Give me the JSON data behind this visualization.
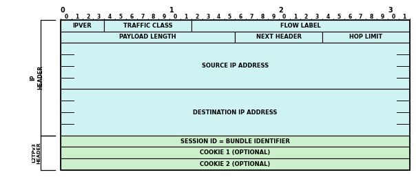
{
  "bg_color": "#ffffff",
  "cell_color_cyan": "#cff3f3",
  "cell_color_green": "#ccf0cc",
  "border_color": "#000000",
  "text_color": "#000000",
  "total_bits": 32,
  "rows": [
    {
      "cells": [
        {
          "label": "IPVER",
          "start": 0,
          "end": 4,
          "color": "cyan"
        },
        {
          "label": "TRAFFIC CLASS",
          "start": 4,
          "end": 12,
          "color": "cyan"
        },
        {
          "label": "FLOW LABEL",
          "start": 12,
          "end": 32,
          "color": "cyan"
        }
      ],
      "tall": 1
    },
    {
      "cells": [
        {
          "label": "PAYLOAD LENGTH",
          "start": 0,
          "end": 16,
          "color": "cyan"
        },
        {
          "label": "NEXT HEADER",
          "start": 16,
          "end": 24,
          "color": "cyan"
        },
        {
          "label": "HOP LIMIT",
          "start": 24,
          "end": 32,
          "color": "cyan"
        }
      ],
      "tall": 1
    },
    {
      "cells": [
        {
          "label": "SOURCE IP ADDRESS",
          "start": 0,
          "end": 32,
          "color": "cyan"
        }
      ],
      "tall": 4
    },
    {
      "cells": [
        {
          "label": "DESTINATION IP ADDRESS",
          "start": 0,
          "end": 32,
          "color": "cyan"
        }
      ],
      "tall": 4
    },
    {
      "cells": [
        {
          "label": "SESSION ID = BUNDLE IDENTIFIER",
          "start": 0,
          "end": 32,
          "color": "green"
        }
      ],
      "tall": 1
    },
    {
      "cells": [
        {
          "label": "COOKIE 1 (OPTIONAL)",
          "start": 0,
          "end": 32,
          "color": "green"
        }
      ],
      "tall": 1
    },
    {
      "cells": [
        {
          "label": "COOKIE 2 (OPTIONAL)",
          "start": 0,
          "end": 32,
          "color": "green"
        }
      ],
      "tall": 1
    }
  ],
  "bit_labels": [
    0,
    1,
    2,
    3,
    4,
    5,
    6,
    7,
    8,
    9,
    0,
    1,
    2,
    3,
    4,
    5,
    6,
    7,
    8,
    9,
    0,
    1,
    2,
    3,
    4,
    5,
    6,
    7,
    8,
    9,
    0,
    1
  ],
  "decade_labels": [
    "0",
    "1",
    "2",
    "3"
  ],
  "decade_bit_starts": [
    0,
    10,
    20,
    30
  ]
}
